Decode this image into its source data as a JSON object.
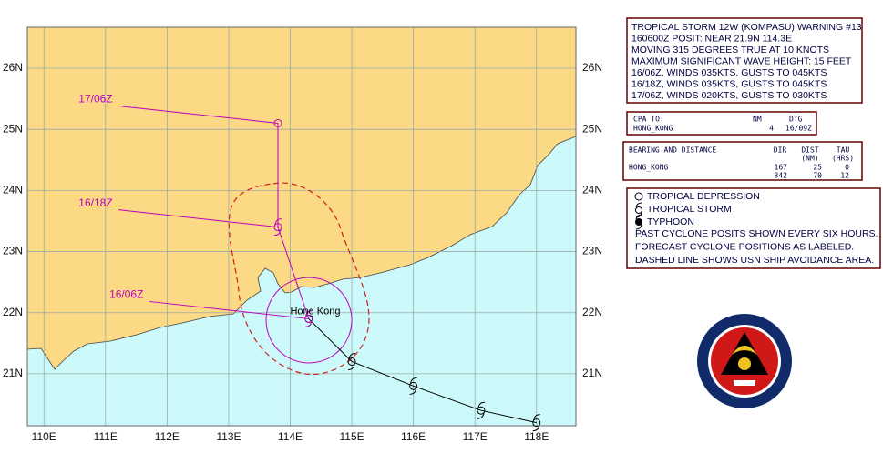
{
  "map": {
    "lat_ticks": [
      {
        "value": 26,
        "label": "26N"
      },
      {
        "value": 25,
        "label": "25N"
      },
      {
        "value": 24,
        "label": "24N"
      },
      {
        "value": 23,
        "label": "23N"
      },
      {
        "value": 22,
        "label": "22N"
      },
      {
        "value": 21,
        "label": "21N"
      }
    ],
    "lon_ticks": [
      {
        "value": 110,
        "label": "110E"
      },
      {
        "value": 111,
        "label": "111E"
      },
      {
        "value": 112,
        "label": "112E"
      },
      {
        "value": 113,
        "label": "113E"
      },
      {
        "value": 114,
        "label": "114E"
      },
      {
        "value": 115,
        "label": "115E"
      },
      {
        "value": 116,
        "label": "116E"
      },
      {
        "value": 117,
        "label": "117E"
      },
      {
        "value": 118,
        "label": "118E"
      }
    ],
    "lon_range": [
      109.73,
      118.64
    ],
    "lat_range": [
      20.15,
      26.67
    ],
    "city": {
      "name": "Hong Kong",
      "lon": 114.17,
      "lat": 22.3
    },
    "past_track": [
      {
        "lon": 118.0,
        "lat": 20.2
      },
      {
        "lon": 117.1,
        "lat": 20.4
      },
      {
        "lon": 116.0,
        "lat": 20.8
      },
      {
        "lon": 115.0,
        "lat": 21.2
      },
      {
        "lon": 114.3,
        "lat": 21.9
      }
    ],
    "forecast_track": [
      {
        "lon": 114.3,
        "lat": 21.9,
        "label": "16/06Z",
        "symbol": "storm"
      },
      {
        "lon": 113.8,
        "lat": 23.4,
        "label": "16/18Z",
        "symbol": "storm"
      },
      {
        "lon": 113.8,
        "lat": 25.1,
        "label": "17/06Z",
        "symbol": "depression"
      }
    ]
  },
  "warning": [
    "TROPICAL STORM 12W (KOMPASU) WARNING #13",
    "160600Z POSIT: NEAR 21.9N 114.3E",
    "MOVING 315 DEGREES TRUE AT 10 KNOTS",
    "MAXIMUM SIGNIFICANT WAVE HEIGHT: 15 FEET",
    "16/06Z, WINDS 035KTS, GUSTS TO 045KTS",
    "16/18Z, WINDS 035KTS, GUSTS TO 045KTS",
    "17/06Z, WINDS 020KTS, GUSTS TO 030KTS"
  ],
  "cpa": {
    "headers": [
      "CPA TO:",
      "NM",
      "DTG"
    ],
    "row": [
      "HONG_KONG",
      "4",
      "16/09Z"
    ]
  },
  "bearing": {
    "title": "BEARING AND DISTANCE",
    "headers": [
      "DIR",
      "DIST",
      "TAU"
    ],
    "units": [
      "(NM)",
      "(HRS)"
    ],
    "place": "HONG_KONG",
    "rows": [
      [
        "167",
        "25",
        "0"
      ],
      [
        "342",
        "70",
        "12"
      ]
    ]
  },
  "legend": {
    "symbols": [
      "TROPICAL DEPRESSION",
      "TROPICAL STORM",
      "TYPHOON"
    ],
    "notes": [
      "PAST CYCLONE POSITS SHOWN EVERY SIX HOURS.",
      "FORECAST CYCLONE POSITIONS AS LABELED.",
      "DASHED LINE SHOWS USN SHIP AVOIDANCE AREA."
    ]
  }
}
